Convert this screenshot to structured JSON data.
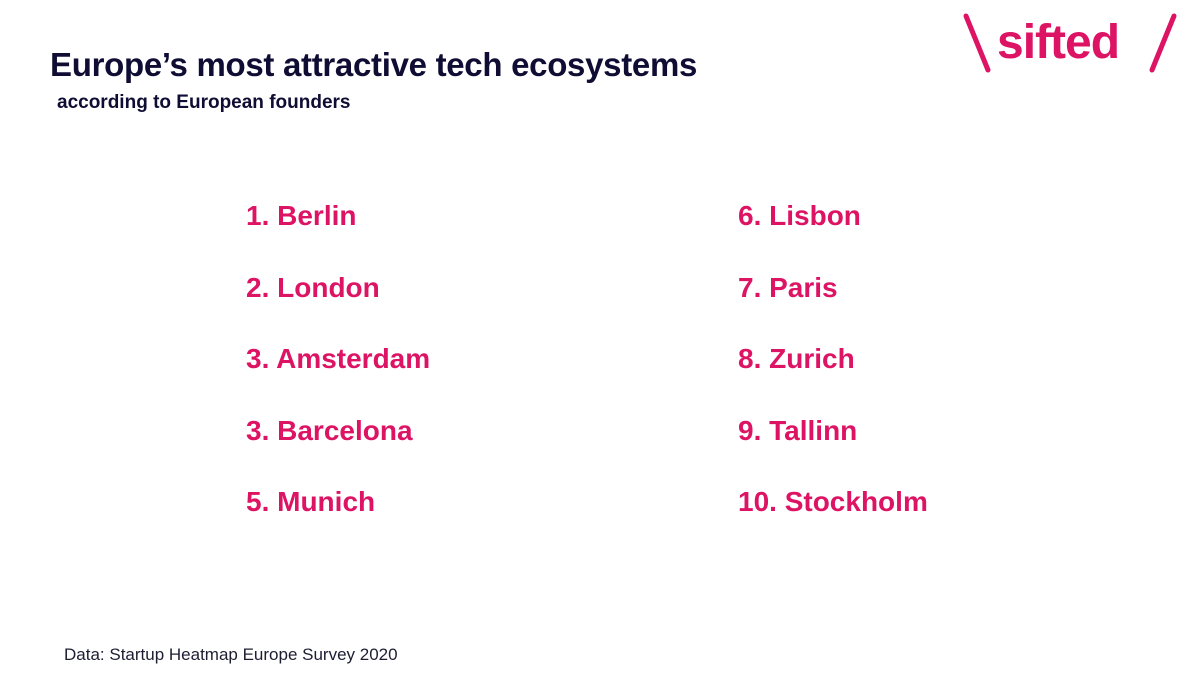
{
  "header": {
    "title": "Europe’s most attractive tech ecosystems",
    "subtitle": "according to European founders"
  },
  "logo": {
    "text": "sifted",
    "icon": "sifted-logo-icon",
    "color": "#dd1364"
  },
  "ranking": {
    "left": [
      "1. Berlin",
      "2. London",
      "3. Amsterdam",
      "3. Barcelona",
      "5. Munich"
    ],
    "right": [
      "6. Lisbon",
      "7. Paris",
      "8. Zurich",
      "9. Tallinn",
      "10. Stockholm"
    ]
  },
  "footer": {
    "source": "Data: Startup Heatmap Europe Survey 2020"
  },
  "colors": {
    "accent": "#dd1364",
    "text": "#0f0d33"
  }
}
